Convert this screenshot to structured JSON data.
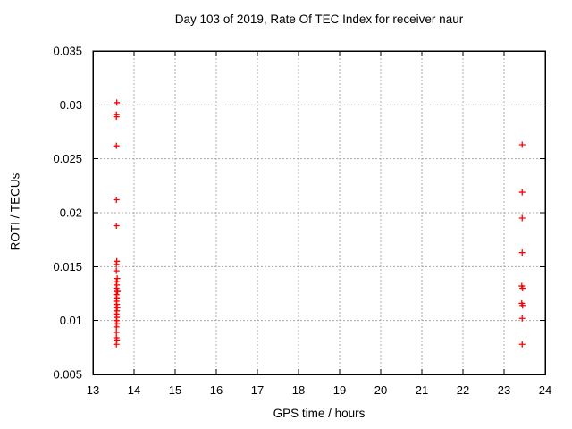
{
  "chart_data": {
    "type": "scatter",
    "title": "Day 103 of 2019, Rate Of TEC Index for receiver naur",
    "xlabel": "GPS time / hours",
    "ylabel": "ROTI / TECUs",
    "xlim": [
      13,
      24
    ],
    "ylim": [
      0.005,
      0.035
    ],
    "xticks": [
      13,
      14,
      15,
      16,
      17,
      18,
      19,
      20,
      21,
      22,
      23,
      24
    ],
    "xtick_labels": [
      "13",
      "14",
      "15",
      "16",
      "17",
      "18",
      "19",
      "20",
      "21",
      "22",
      "23",
      "24"
    ],
    "yticks": [
      0.005,
      0.01,
      0.015,
      0.02,
      0.025,
      0.03,
      0.035
    ],
    "ytick_labels": [
      "0.005",
      "0.01",
      "0.015",
      "0.02",
      "0.025",
      "0.03",
      "0.035"
    ],
    "grid": true,
    "legend": "none",
    "colors": {
      "marker": "#ff0000",
      "grid": "#a8a8a8",
      "border": "#000000",
      "background": "#ffffff"
    },
    "marker": "plus",
    "series": [
      {
        "name": "ROTI",
        "points": [
          [
            13.58,
            0.0302
          ],
          [
            13.57,
            0.0291
          ],
          [
            13.57,
            0.0289
          ],
          [
            13.57,
            0.0262
          ],
          [
            13.57,
            0.0212
          ],
          [
            13.57,
            0.0188
          ],
          [
            13.58,
            0.0155
          ],
          [
            13.57,
            0.0152
          ],
          [
            13.57,
            0.0146
          ],
          [
            13.59,
            0.0139
          ],
          [
            13.57,
            0.0136
          ],
          [
            13.58,
            0.0133
          ],
          [
            13.57,
            0.013
          ],
          [
            13.58,
            0.0127
          ],
          [
            13.6,
            0.0127
          ],
          [
            13.57,
            0.0124
          ],
          [
            13.58,
            0.0121
          ],
          [
            13.57,
            0.0118
          ],
          [
            13.58,
            0.0115
          ],
          [
            13.57,
            0.0112
          ],
          [
            13.59,
            0.0112
          ],
          [
            13.58,
            0.0109
          ],
          [
            13.57,
            0.0106
          ],
          [
            13.58,
            0.0103
          ],
          [
            13.57,
            0.01
          ],
          [
            13.58,
            0.0097
          ],
          [
            13.57,
            0.0094
          ],
          [
            13.57,
            0.0089
          ],
          [
            13.57,
            0.0084
          ],
          [
            13.58,
            0.0082
          ],
          [
            13.57,
            0.0078
          ],
          [
            23.44,
            0.0263
          ],
          [
            23.44,
            0.0219
          ],
          [
            23.44,
            0.0195
          ],
          [
            23.44,
            0.0163
          ],
          [
            23.43,
            0.0132
          ],
          [
            23.45,
            0.013
          ],
          [
            23.43,
            0.0116
          ],
          [
            23.45,
            0.0114
          ],
          [
            23.44,
            0.0102
          ],
          [
            23.44,
            0.0078
          ]
        ]
      }
    ]
  }
}
